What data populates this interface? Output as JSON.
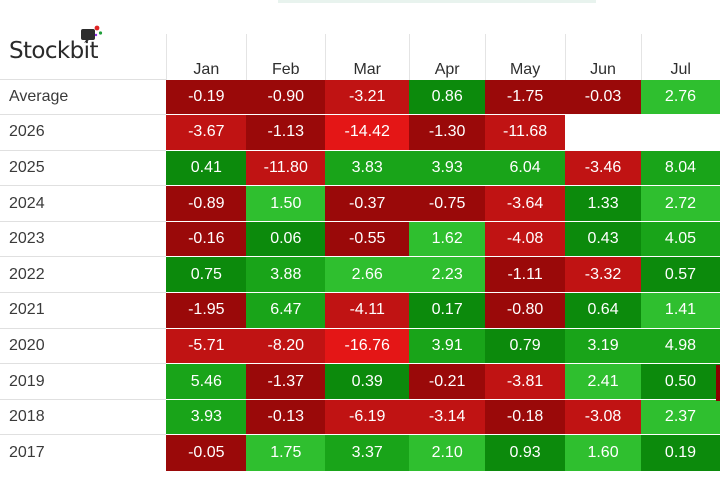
{
  "brand": {
    "name": "Stockbit"
  },
  "colors": {
    "text": "#2e2e2e",
    "cell_text": "#ffffff",
    "positive_strong": "#0c8a0c",
    "positive_mid": "#19a419",
    "positive_light": "#2fbf2f",
    "negative_strong": "#9a0909",
    "negative_mid": "#c01313",
    "negative_light": "#e41616"
  },
  "table": {
    "months": [
      "Jan",
      "Feb",
      "Mar",
      "Apr",
      "May",
      "Jun",
      "Jul"
    ],
    "rows": [
      {
        "label": "Average",
        "values": [
          "-0.19",
          "-0.90",
          "-3.21",
          "0.86",
          "-1.75",
          "-0.03",
          "2.76"
        ]
      },
      {
        "label": "2026",
        "values": [
          "-3.67",
          "-1.13",
          "-14.42",
          "-1.30",
          "-11.68",
          "",
          ""
        ]
      },
      {
        "label": "2025",
        "values": [
          "0.41",
          "-11.80",
          "3.83",
          "3.93",
          "6.04",
          "-3.46",
          "8.04"
        ]
      },
      {
        "label": "2024",
        "values": [
          "-0.89",
          "1.50",
          "-0.37",
          "-0.75",
          "-3.64",
          "1.33",
          "2.72"
        ]
      },
      {
        "label": "2023",
        "values": [
          "-0.16",
          "0.06",
          "-0.55",
          "1.62",
          "-4.08",
          "0.43",
          "4.05"
        ]
      },
      {
        "label": "2022",
        "values": [
          "0.75",
          "3.88",
          "2.66",
          "2.23",
          "-1.11",
          "-3.32",
          "0.57"
        ]
      },
      {
        "label": "2021",
        "values": [
          "-1.95",
          "6.47",
          "-4.11",
          "0.17",
          "-0.80",
          "0.64",
          "1.41"
        ]
      },
      {
        "label": "2020",
        "values": [
          "-5.71",
          "-8.20",
          "-16.76",
          "3.91",
          "0.79",
          "3.19",
          "4.98"
        ]
      },
      {
        "label": "2019",
        "values": [
          "5.46",
          "-1.37",
          "0.39",
          "-0.21",
          "-3.81",
          "2.41",
          "0.50"
        ]
      },
      {
        "label": "2018",
        "values": [
          "3.93",
          "-0.13",
          "-6.19",
          "-3.14",
          "-0.18",
          "-3.08",
          "2.37"
        ]
      },
      {
        "label": "2017",
        "values": [
          "-0.05",
          "1.75",
          "3.37",
          "2.10",
          "0.93",
          "1.60",
          "0.19"
        ]
      }
    ]
  }
}
